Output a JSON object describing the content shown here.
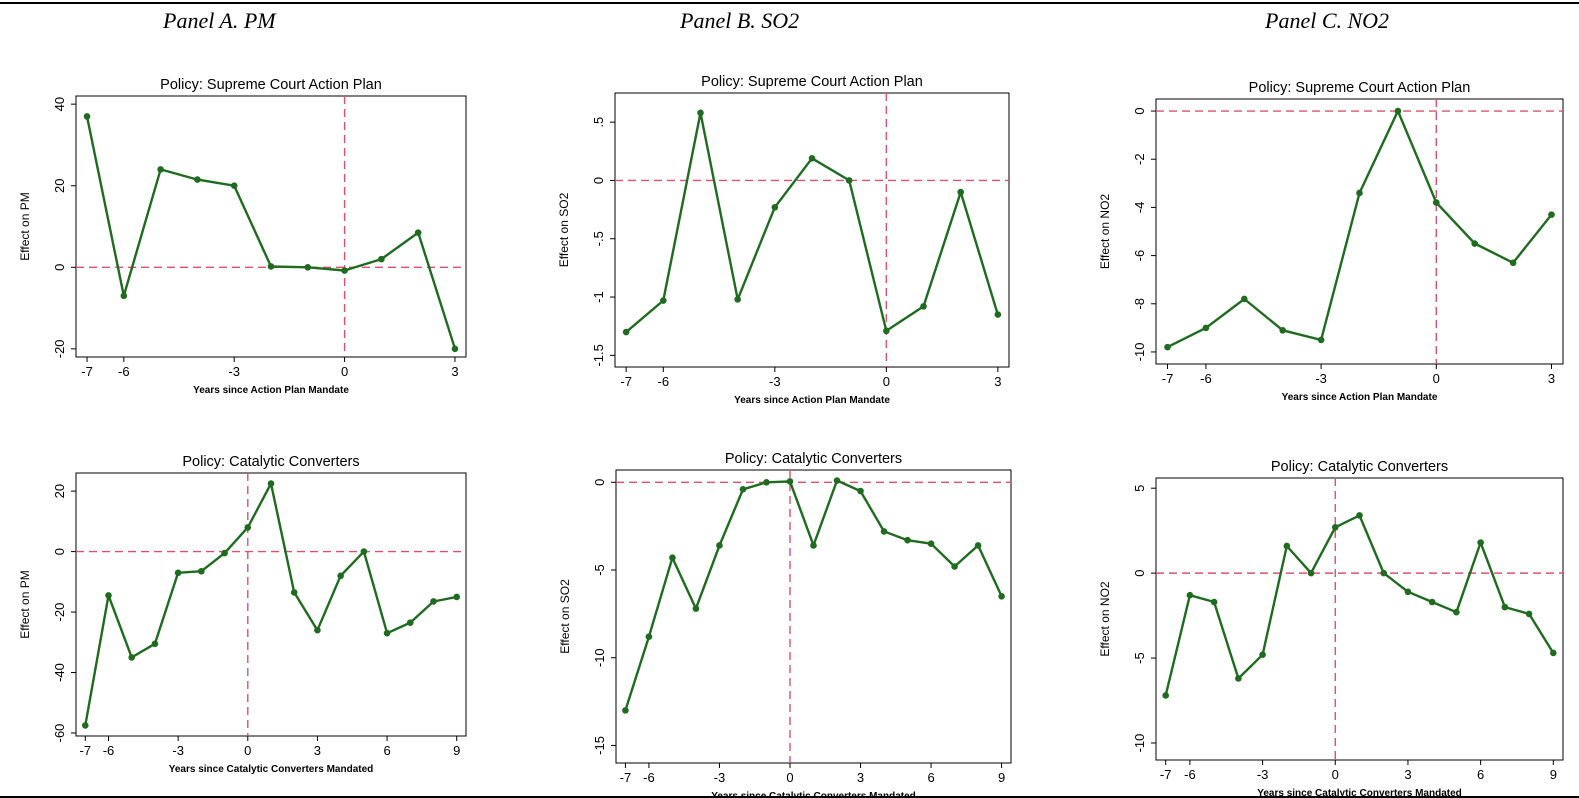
{
  "panels": [
    {
      "title": "Panel A. PM"
    },
    {
      "title": "Panel B. SO2"
    },
    {
      "title": "Panel C. NO2"
    }
  ],
  "colors": {
    "line": "#1f6b1f",
    "reference": "#d9536f",
    "axis": "#000000"
  },
  "chart_data": [
    {
      "type": "line",
      "title": "Policy:  Supreme Court Action Plan",
      "xlabel": "Years since Action Plan Mandate",
      "ylabel": "Effect on PM",
      "x": [
        -7,
        -6,
        -5,
        -4,
        -3,
        -2,
        -1,
        0,
        1,
        2,
        3
      ],
      "y": [
        37,
        -7,
        24,
        21.5,
        20,
        0.2,
        0,
        -0.8,
        2,
        8.5,
        -20
      ],
      "xlim": [
        -7.3,
        3.3
      ],
      "ylim": [
        -22,
        42
      ],
      "xticks": [
        -7,
        -6,
        -3,
        0,
        3
      ],
      "xtick_labels": [
        "-7",
        "-6",
        "-3",
        "0",
        "3"
      ],
      "yticks": [
        40,
        20,
        0,
        -20
      ],
      "ytick_labels": [
        "40",
        "20",
        "0",
        "-20"
      ],
      "ref_x": 0,
      "ref_y": 0
    },
    {
      "type": "line",
      "title": "Policy:  Supreme Court Action Plan",
      "xlabel": "Years since Action Plan Mandate",
      "ylabel": "Effect on SO2",
      "x": [
        -7,
        -6,
        -5,
        -4,
        -3,
        -2,
        -1,
        0,
        1,
        2,
        3
      ],
      "y": [
        -1.3,
        -1.03,
        0.58,
        -1.02,
        -0.23,
        0.19,
        0,
        -1.29,
        -1.08,
        -0.1,
        -1.15
      ],
      "xlim": [
        -7.3,
        3.3
      ],
      "ylim": [
        -1.6,
        0.75
      ],
      "xticks": [
        -7,
        -6,
        -3,
        0,
        3
      ],
      "xtick_labels": [
        "-7",
        "-6",
        "-3",
        "0",
        "3"
      ],
      "yticks": [
        0.5,
        0,
        -0.5,
        -1,
        -1.5
      ],
      "ytick_labels": [
        ".5",
        "0",
        "-.5",
        "-1",
        "-1.5"
      ],
      "ref_x": 0,
      "ref_y": 0
    },
    {
      "type": "line",
      "title": "Policy:  Supreme Court Action Plan",
      "xlabel": "Years since Action Plan Mandate",
      "ylabel": "Effect on NO2",
      "x": [
        -7,
        -6,
        -5,
        -4,
        -3,
        -2,
        -1,
        0,
        1,
        2,
        3
      ],
      "y": [
        -9.8,
        -9,
        -7.8,
        -9.1,
        -9.5,
        -3.4,
        0,
        -3.8,
        -5.5,
        -6.3,
        -4.3
      ],
      "xlim": [
        -7.3,
        3.3
      ],
      "ylim": [
        -10.5,
        0.5
      ],
      "xticks": [
        -7,
        -6,
        -3,
        0,
        3
      ],
      "xtick_labels": [
        "-7",
        "-6",
        "-3",
        "0",
        "3"
      ],
      "yticks": [
        0,
        -2,
        -4,
        -6,
        -8,
        -10
      ],
      "ytick_labels": [
        "0",
        "-2",
        "-4",
        "-6",
        "-8",
        "-10"
      ],
      "ref_x": 0,
      "ref_y": 0
    },
    {
      "type": "line",
      "title": "Policy:  Catalytic Converters",
      "xlabel": "Years since Catalytic Converters Mandated",
      "ylabel": "Effect on PM",
      "x": [
        -7,
        -6,
        -5,
        -4,
        -3,
        -2,
        -1,
        0,
        1,
        2,
        3,
        4,
        5,
        6,
        7,
        8,
        9
      ],
      "y": [
        -57.5,
        -14.5,
        -35,
        -30.5,
        -7,
        -6.5,
        -0.5,
        8,
        22.5,
        -13.5,
        -26,
        -8,
        0,
        -27,
        -23.5,
        -16.5,
        -15
      ],
      "xlim": [
        -7.4,
        9.4
      ],
      "ylim": [
        -61,
        26
      ],
      "xticks": [
        -7,
        -6,
        -3,
        0,
        3,
        6,
        9
      ],
      "xtick_labels": [
        "-7",
        "-6",
        "-3",
        "0",
        "3",
        "6",
        "9"
      ],
      "yticks": [
        20,
        0,
        -20,
        -40,
        -60
      ],
      "ytick_labels": [
        "20",
        "0",
        "-20",
        "-40",
        "-60"
      ],
      "ref_x": 0,
      "ref_y": 0
    },
    {
      "type": "line",
      "title": "Policy:  Catalytic Converters",
      "xlabel": "Years since Catalytic Converters Mandated",
      "ylabel": "Effect on SO2",
      "x": [
        -7,
        -6,
        -5,
        -4,
        -3,
        -2,
        -1,
        0,
        1,
        2,
        3,
        4,
        5,
        6,
        7,
        8,
        9
      ],
      "y": [
        -13,
        -8.8,
        -4.3,
        -7.2,
        -3.6,
        -0.4,
        0,
        0.05,
        -3.6,
        0.1,
        -0.5,
        -2.8,
        -3.3,
        -3.5,
        -4.8,
        -3.6,
        -6.5
      ],
      "xlim": [
        -7.4,
        9.4
      ],
      "ylim": [
        -16,
        0.7
      ],
      "xticks": [
        -7,
        -6,
        -3,
        0,
        3,
        6,
        9
      ],
      "xtick_labels": [
        "-7",
        "-6",
        "-3",
        "0",
        "3",
        "6",
        "9"
      ],
      "yticks": [
        0,
        -5,
        -10,
        -15
      ],
      "ytick_labels": [
        "0",
        "-5",
        "-10",
        "-15"
      ],
      "ref_x": 0,
      "ref_y": 0
    },
    {
      "type": "line",
      "title": "Policy:  Catalytic Converters",
      "xlabel": "Years since Catalytic Converters Mandated",
      "ylabel": "Effect on NO2",
      "x": [
        -7,
        -6,
        -5,
        -4,
        -3,
        -2,
        -1,
        0,
        1,
        2,
        3,
        4,
        5,
        6,
        7,
        8,
        9
      ],
      "y": [
        -7.2,
        -1.3,
        -1.7,
        -6.2,
        -4.8,
        1.6,
        0,
        2.7,
        3.4,
        0,
        -1.1,
        -1.7,
        -2.3,
        1.8,
        -2,
        -2.4,
        -4.7
      ],
      "xlim": [
        -7.4,
        9.4
      ],
      "ylim": [
        -11,
        5.6
      ],
      "xticks": [
        -7,
        -6,
        -3,
        0,
        3,
        6,
        9
      ],
      "xtick_labels": [
        "-7",
        "-6",
        "-3",
        "0",
        "3",
        "6",
        "9"
      ],
      "yticks": [
        5,
        0,
        -5,
        -10
      ],
      "ytick_labels": [
        "5",
        "0",
        "-5",
        "-10"
      ],
      "ref_x": 0,
      "ref_y": 0
    }
  ]
}
